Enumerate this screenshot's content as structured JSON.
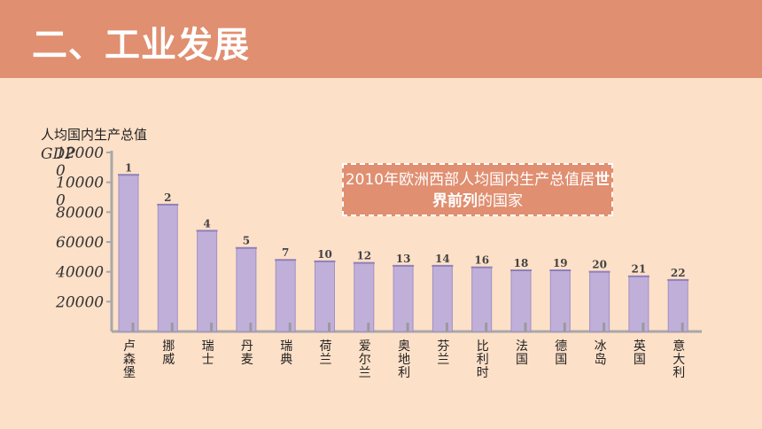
{
  "slide": {
    "title": "二、工业发展"
  },
  "callout": {
    "pre": "2010年欧洲西部人均国内生产总值居",
    "bold": "世界前列",
    "post": "的国家"
  },
  "colors": {
    "header": "#e08f71",
    "background": "#fde0c8",
    "bar": "#c0b0d9",
    "bar_edge": "#a090c4",
    "callout": "#e08f71"
  },
  "chart_data": {
    "type": "bar",
    "ylabel": "人均国内生产总值",
    "ylabel_latin": "GDP",
    "ylim": [
      0,
      120000
    ],
    "yticks": [
      "12000\n0",
      "10000\n0",
      "80000",
      "60000",
      "40000",
      "20000"
    ],
    "ytick_values": [
      120000,
      100000,
      80000,
      60000,
      40000,
      20000
    ],
    "categories": [
      "卢森堡",
      "挪威",
      "瑞士",
      "丹麦",
      "瑞典",
      "荷兰",
      "爱尔兰",
      "奥地利",
      "芬兰",
      "比利时",
      "法国",
      "德国",
      "冰岛",
      "英国",
      "意大利"
    ],
    "ranks": [
      "1",
      "2",
      "4",
      "5",
      "7",
      "10",
      "12",
      "13",
      "14",
      "16",
      "18",
      "19",
      "20",
      "21",
      "22"
    ],
    "values": [
      105000,
      85000,
      67500,
      56000,
      48000,
      47000,
      46000,
      44000,
      44000,
      43000,
      41000,
      41000,
      40000,
      37000,
      34500
    ],
    "grid": false,
    "legend": "none"
  }
}
